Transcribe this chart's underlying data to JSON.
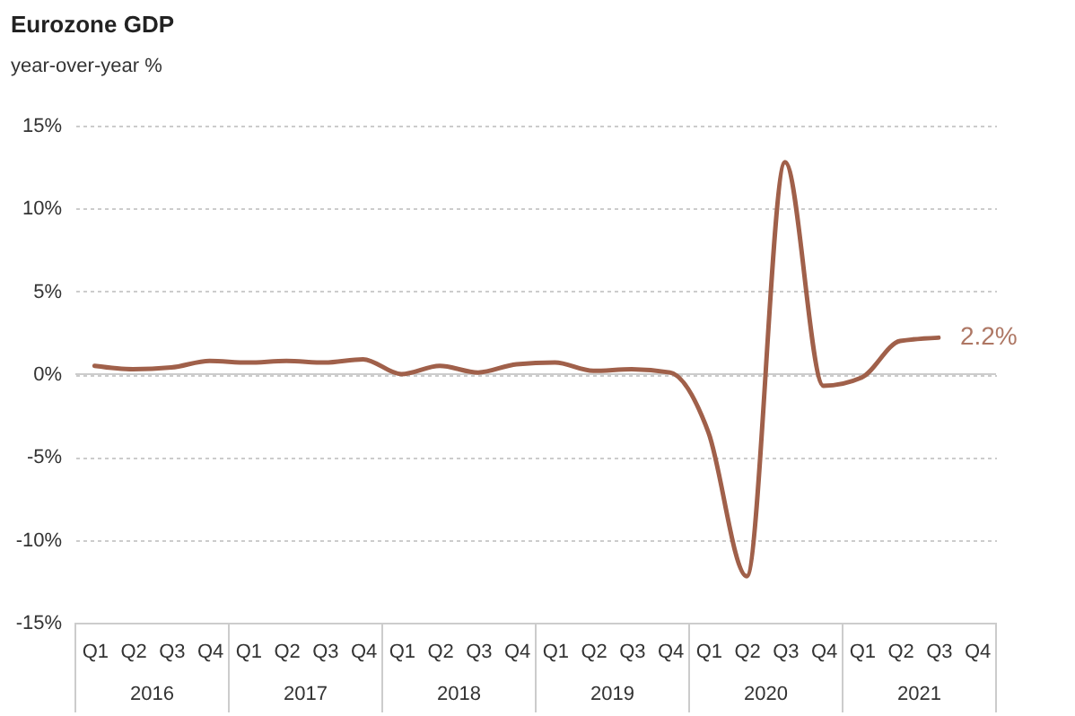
{
  "chart_data": {
    "type": "line",
    "title": "Eurozone GDP",
    "subtitle": "year-over-year %",
    "categories": [
      "Q1",
      "Q2",
      "Q3",
      "Q4",
      "Q1",
      "Q2",
      "Q3",
      "Q4",
      "Q1",
      "Q2",
      "Q3",
      "Q4",
      "Q1",
      "Q2",
      "Q3",
      "Q4",
      "Q1",
      "Q2",
      "Q3",
      "Q4",
      "Q1",
      "Q2",
      "Q3",
      "Q4"
    ],
    "annotations": [
      "2016",
      "2017",
      "2018",
      "2019",
      "2020",
      "2021"
    ],
    "series": [
      {
        "color": "#a0604a",
        "values": [
          0.5,
          0.3,
          0.4,
          0.8,
          0.7,
          0.8,
          0.7,
          0.9,
          0.0,
          0.5,
          0.1,
          0.6,
          0.7,
          0.2,
          0.3,
          0.1,
          -3.5,
          -12.2,
          12.8,
          -0.7,
          -0.2,
          2.0,
          2.2,
          null
        ],
        "value_labels": [
          null,
          null,
          null,
          null,
          null,
          null,
          null,
          null,
          null,
          null,
          null,
          null,
          null,
          null,
          null,
          null,
          null,
          null,
          null,
          null,
          null,
          null,
          "2.2%",
          null
        ]
      }
    ],
    "ylim": [
      -15,
      15
    ],
    "yticks": [
      {
        "value": -15,
        "label": "-15%"
      },
      {
        "value": -10,
        "label": "-10%"
      },
      {
        "value": -5,
        "label": "-5%"
      },
      {
        "value": 0,
        "label": "0%"
      },
      {
        "value": 5,
        "label": "5%"
      },
      {
        "value": 10,
        "label": "10%"
      },
      {
        "value": 15,
        "label": "15%"
      }
    ],
    "grid": "y",
    "ref_lines": [
      {
        "axis": "y",
        "value": 0,
        "color": "#cccccc"
      }
    ]
  }
}
